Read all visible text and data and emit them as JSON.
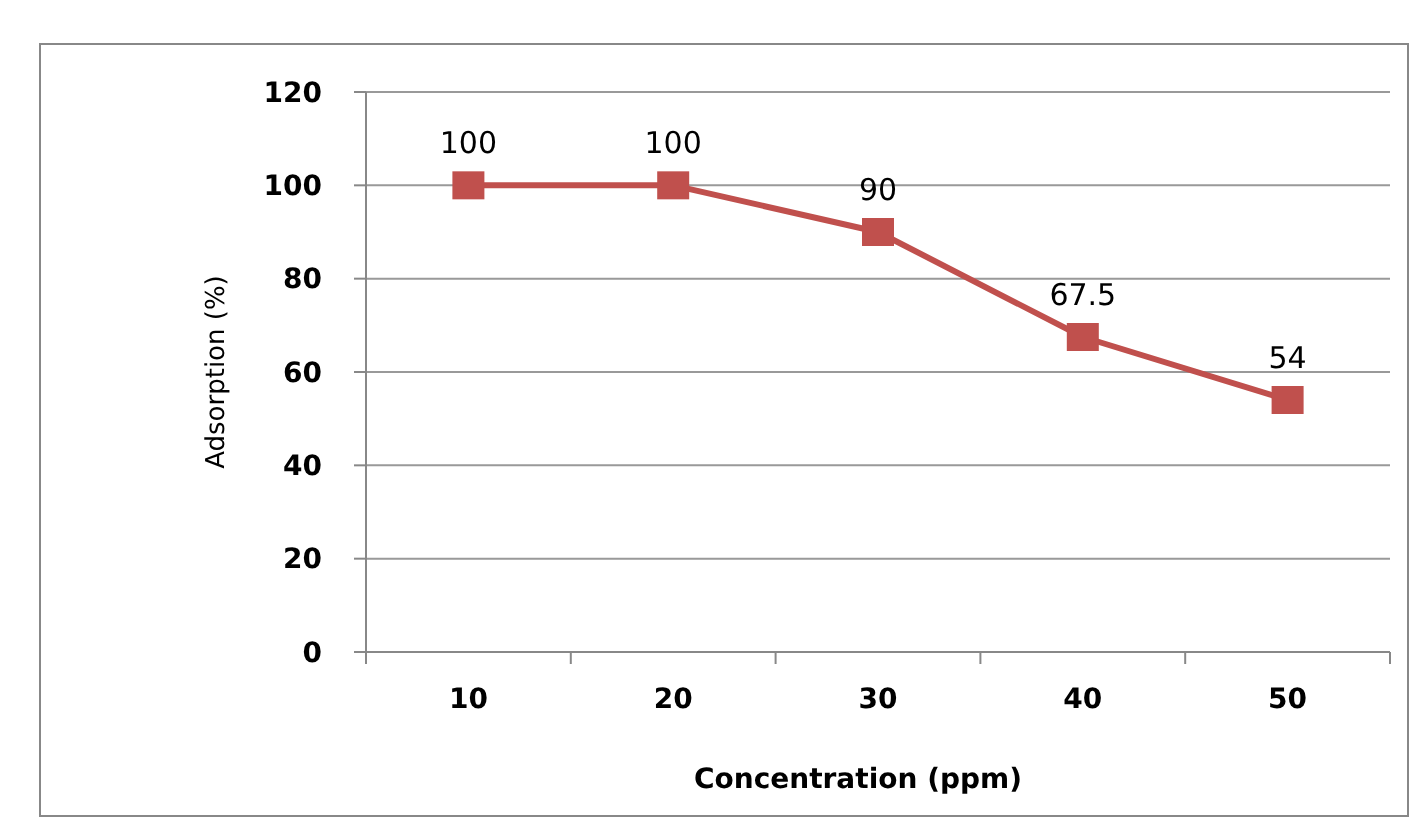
{
  "chart_data": {
    "type": "line",
    "categories": [
      "10",
      "20",
      "30",
      "40",
      "50"
    ],
    "series": [
      {
        "color": "#c0504d",
        "values": [
          100,
          100,
          90,
          67.5,
          54
        ]
      }
    ],
    "ylim": [
      0,
      120
    ],
    "yticks": [
      0,
      20,
      40,
      60,
      80,
      100,
      120
    ],
    "xlabel": "Concentration (ppm)",
    "ylabel": "Adsorption (%)",
    "grid": "y",
    "marker": "square",
    "line_style": "solid",
    "data_labels": true
  }
}
